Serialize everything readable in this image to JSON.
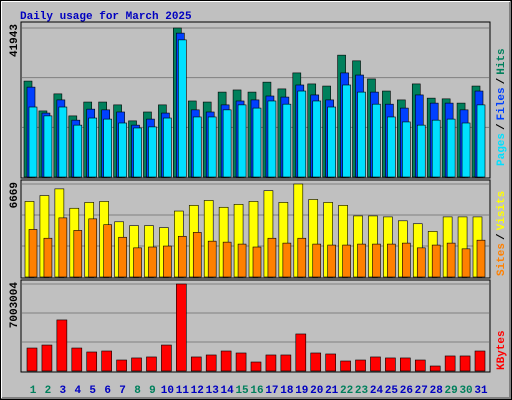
{
  "chart_data": [
    {
      "type": "bar",
      "title": "Daily usage for March 2025",
      "ylim": [
        0,
        41943
      ],
      "yticks": [
        41943
      ],
      "legend_separator": "/",
      "series": [
        {
          "name": "Hits",
          "color": "#00805c",
          "values": [
            27000,
            18600,
            23400,
            17200,
            21100,
            21100,
            20300,
            15800,
            18300,
            20300,
            41943,
            21400,
            21100,
            23900,
            24500,
            23900,
            26700,
            24800,
            29300,
            26200,
            25600,
            34300,
            32700,
            27600,
            24200,
            21700,
            26200,
            22200,
            22000,
            20800,
            25600
          ]
        },
        {
          "name": "Files",
          "color": "#0040ff",
          "values": [
            25300,
            18000,
            21700,
            16000,
            19100,
            18900,
            18300,
            14600,
            16300,
            18000,
            40500,
            18900,
            18300,
            20300,
            21400,
            21700,
            22800,
            22500,
            25900,
            23100,
            21700,
            29300,
            28700,
            23900,
            20500,
            19400,
            23100,
            20800,
            20800,
            18900,
            24200
          ]
        },
        {
          "name": "Pages",
          "color": "#00e0ff",
          "values": [
            19700,
            17200,
            19700,
            14600,
            16600,
            16300,
            15200,
            13800,
            14100,
            16600,
            38600,
            16900,
            16900,
            18900,
            20300,
            19400,
            21400,
            20500,
            24200,
            21400,
            19700,
            25900,
            23900,
            20500,
            16900,
            15500,
            14600,
            16000,
            16300,
            15200,
            20300
          ]
        }
      ]
    },
    {
      "type": "bar",
      "ylim": [
        0,
        6669
      ],
      "yticks": [
        6669
      ],
      "legend_separator": "/",
      "series": [
        {
          "name": "Visits",
          "color": "#ffff00",
          "values": [
            5420,
            5840,
            6320,
            4930,
            5350,
            5420,
            3960,
            3680,
            3680,
            3540,
            4730,
            5140,
            5490,
            5000,
            5210,
            5420,
            6190,
            5350,
            6669,
            5560,
            5350,
            5140,
            4380,
            4380,
            4310,
            4030,
            3820,
            3270,
            4310,
            4310,
            4310
          ]
        },
        {
          "name": "Sites",
          "color": "#ff8000",
          "values": [
            3410,
            2780,
            4240,
            3340,
            4170,
            3750,
            2850,
            2090,
            2150,
            2220,
            2920,
            3200,
            2570,
            2500,
            2360,
            2150,
            2780,
            2430,
            2780,
            2360,
            2290,
            2290,
            2360,
            2360,
            2360,
            2430,
            2090,
            2290,
            2430,
            2020,
            2640
          ]
        }
      ]
    },
    {
      "type": "bar",
      "ylim": [
        0,
        7003004
      ],
      "yticks": [
        7003004
      ],
      "categories": [
        "1",
        "2",
        "3",
        "4",
        "5",
        "6",
        "7",
        "8",
        "9",
        "10",
        "11",
        "12",
        "13",
        "14",
        "15",
        "16",
        "17",
        "18",
        "19",
        "20",
        "21",
        "22",
        "23",
        "24",
        "25",
        "26",
        "27",
        "28",
        "29",
        "30",
        "31"
      ],
      "category_colors": [
        "#00805c",
        "#00805c",
        "#0000c0",
        "#0000c0",
        "#0000c0",
        "#0000c0",
        "#0000c0",
        "#00805c",
        "#00805c",
        "#0000c0",
        "#0000c0",
        "#0000c0",
        "#0000c0",
        "#0000c0",
        "#00805c",
        "#00805c",
        "#0000c0",
        "#0000c0",
        "#0000c0",
        "#0000c0",
        "#0000c0",
        "#00805c",
        "#00805c",
        "#0000c0",
        "#0000c0",
        "#0000c0",
        "#0000c0",
        "#0000c0",
        "#00805c",
        "#00805c",
        "#0000c0"
      ],
      "series": [
        {
          "name": "KBytes",
          "color": "#ff0000",
          "values": [
            1850000,
            2090000,
            4110000,
            1850000,
            1530000,
            1610000,
            885000,
            1050000,
            1130000,
            2090000,
            7003004,
            1130000,
            1290000,
            1610000,
            1450000,
            724000,
            1290000,
            1290000,
            2980000,
            1450000,
            1370000,
            805000,
            885000,
            1130000,
            1050000,
            1050000,
            885000,
            402000,
            1210000,
            1210000,
            1610000
          ]
        }
      ]
    }
  ]
}
